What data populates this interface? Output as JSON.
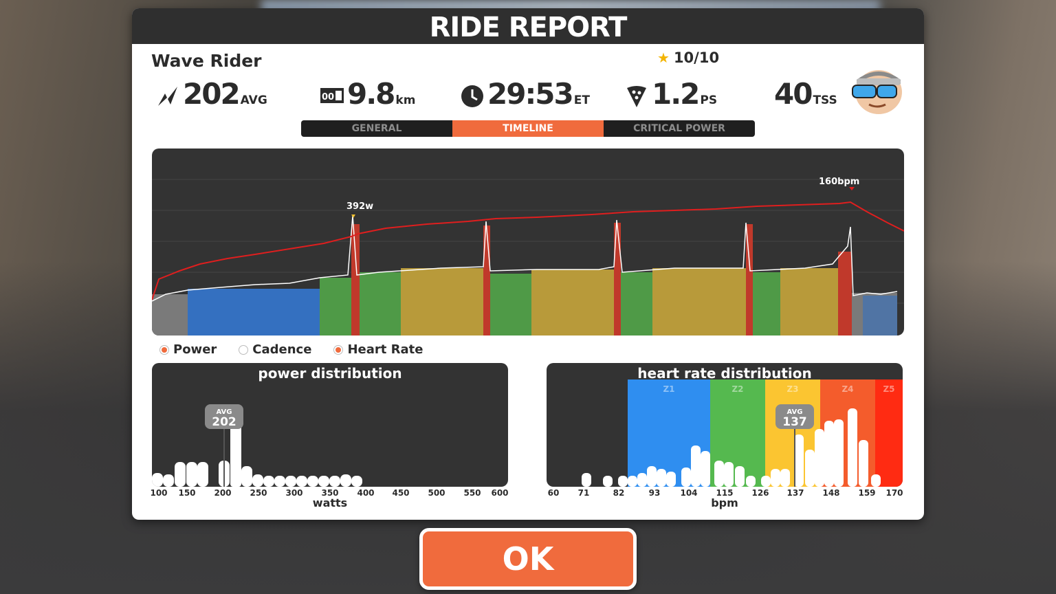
{
  "header": {
    "title": "RIDE REPORT"
  },
  "activity": {
    "name": "Wave Rider",
    "rating": "10/10"
  },
  "stats": {
    "power": {
      "value": "202",
      "unit": "AVG",
      "icon": "lightning-icon"
    },
    "distance": {
      "value": "9.8",
      "unit": "km",
      "icon": "odometer-icon"
    },
    "time": {
      "value": "29:53",
      "unit": "ET",
      "icon": "clock-icon"
    },
    "pizza": {
      "value": "1.2",
      "unit": "PS",
      "icon": "pizza-slice-icon"
    },
    "tss": {
      "value": "40",
      "unit": "TSS"
    }
  },
  "tabs": [
    {
      "label": "GENERAL",
      "active": false
    },
    {
      "label": "TIMELINE",
      "active": true
    },
    {
      "label": "CRITICAL POWER",
      "active": false
    }
  ],
  "timeline": {
    "power_peak_label": "392w",
    "hr_peak_label": "160bpm"
  },
  "legend": [
    {
      "label": "Power",
      "selected": true
    },
    {
      "label": "Cadence",
      "selected": false
    },
    {
      "label": "Heart Rate",
      "selected": true
    }
  ],
  "power_distribution": {
    "title": "power distribution",
    "avg_label": "AVG",
    "avg_value": "202",
    "x_ticks": [
      "100",
      "150",
      "200",
      "250",
      "300",
      "350",
      "400",
      "450",
      "500",
      "550",
      "600"
    ],
    "x_label": "watts"
  },
  "hr_distribution": {
    "title": "heart rate distribution",
    "avg_label": "AVG",
    "avg_value": "137",
    "zones": [
      "Z1",
      "Z2",
      "Z3",
      "Z4",
      "Z5"
    ],
    "x_ticks": [
      "60",
      "71",
      "82",
      "93",
      "104",
      "115",
      "126",
      "137",
      "148",
      "159",
      "170"
    ],
    "x_label": "bpm"
  },
  "colors": {
    "accent": "#f06b3d",
    "zone_gray": "#7a7a7a",
    "zone_blue": "#3478d4",
    "zone_green": "#4f9a47",
    "zone_yellow": "#b89a3a",
    "zone_red": "#c0392b",
    "hr_line": "#e01e1e"
  },
  "ok_button": {
    "label": "OK"
  }
}
